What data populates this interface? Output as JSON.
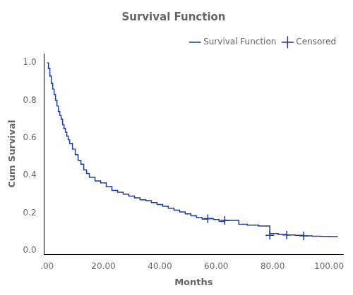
{
  "chart_data": {
    "type": "line",
    "title": "Survival Function",
    "xlabel": "Months",
    "ylabel": "Cum Survival",
    "series": [
      {
        "name": "Survival Function",
        "type": "step",
        "color": "#1F3A8F",
        "x": [
          0,
          0.5,
          1.0,
          1.5,
          2.0,
          2.5,
          3.0,
          3.5,
          4.0,
          4.5,
          5.0,
          5.5,
          6.0,
          6.5,
          7.0,
          7.5,
          8.0,
          9.0,
          10.0,
          11.0,
          12.0,
          13.0,
          14.0,
          15.0,
          17.0,
          19.0,
          21.0,
          23.0,
          25.0,
          27.0,
          29.0,
          31.0,
          33.0,
          35.0,
          37.0,
          39.0,
          41.0,
          43.0,
          45.0,
          47.0,
          49.0,
          51.0,
          53.0,
          55.0,
          57.0,
          59.0,
          61.0,
          63.0,
          65.0,
          68.0,
          71.0,
          75.0,
          79.0,
          82.0,
          85.0,
          88.0,
          91.0,
          94.0,
          97.0,
          100.0,
          103.0
        ],
        "values": [
          1.0,
          0.97,
          0.93,
          0.89,
          0.86,
          0.83,
          0.8,
          0.77,
          0.74,
          0.72,
          0.7,
          0.67,
          0.65,
          0.63,
          0.61,
          0.59,
          0.57,
          0.54,
          0.51,
          0.48,
          0.46,
          0.43,
          0.41,
          0.39,
          0.37,
          0.36,
          0.34,
          0.32,
          0.31,
          0.3,
          0.29,
          0.28,
          0.27,
          0.265,
          0.255,
          0.245,
          0.235,
          0.225,
          0.215,
          0.205,
          0.195,
          0.185,
          0.175,
          0.167,
          0.17,
          0.165,
          0.155,
          0.16,
          0.16,
          0.14,
          0.135,
          0.13,
          0.09,
          0.085,
          0.082,
          0.08,
          0.078,
          0.076,
          0.075,
          0.074,
          0.073
        ]
      },
      {
        "name": "Censored",
        "type": "scatter",
        "marker": "+",
        "color": "#1F3A8F",
        "x": [
          57.0,
          63.0,
          79.0,
          85.0,
          91.0
        ],
        "values": [
          0.17,
          0.16,
          0.08,
          0.082,
          0.078
        ]
      }
    ],
    "xlim": [
      -1,
      105
    ],
    "ylim": [
      -0.02,
      1.05
    ],
    "xticks": [
      {
        "value": 0,
        "label": ".00"
      },
      {
        "value": 20,
        "label": "20.00"
      },
      {
        "value": 40,
        "label": "40.00"
      },
      {
        "value": 60,
        "label": "60.00"
      },
      {
        "value": 80,
        "label": "80.00"
      },
      {
        "value": 100,
        "label": "100.00"
      }
    ],
    "yticks": [
      {
        "value": 0,
        "label": "0.0"
      },
      0.2,
      0.4,
      0.6,
      0.8,
      {
        "value": 1,
        "label": "1.0"
      }
    ],
    "grid": false,
    "legend": "upper right"
  }
}
